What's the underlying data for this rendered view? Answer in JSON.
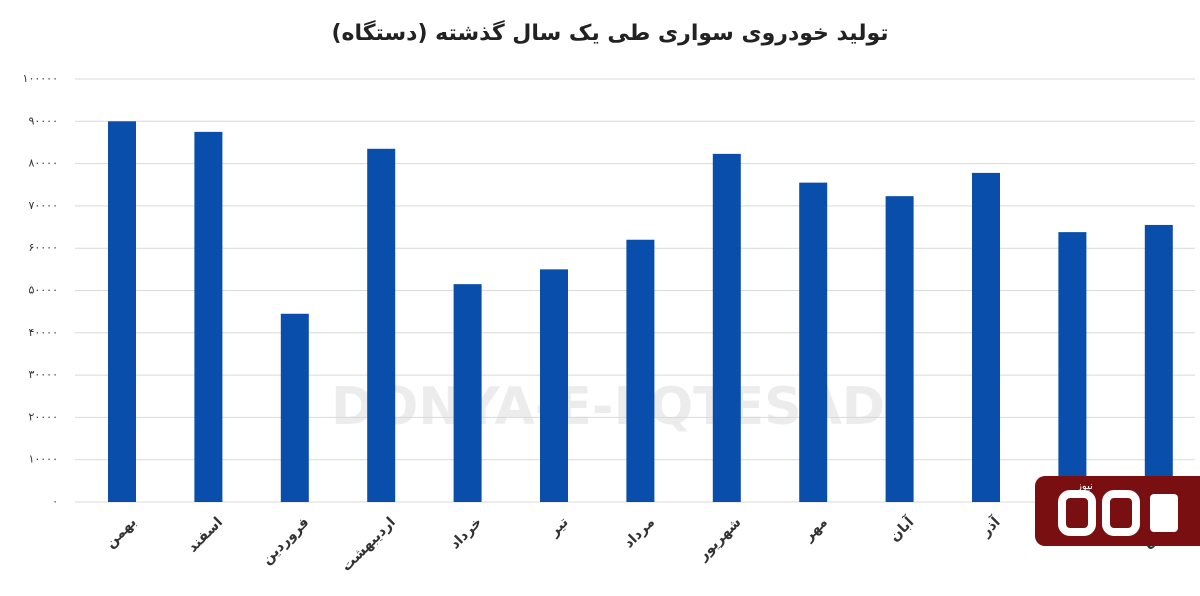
{
  "chart_data": {
    "type": "bar",
    "title": "تولید خودروی سواری طی یک سال گذشته (دستگاه)",
    "categories": [
      "بهمن",
      "اسفند",
      "فروردین",
      "اردیبهشت",
      "خرداد",
      "تیر",
      "مرداد",
      "شهریور",
      "مهر",
      "آبان",
      "آذر",
      null,
      "بهمن"
    ],
    "values": [
      90000,
      87500,
      44500,
      83500,
      51500,
      55000,
      62000,
      82300,
      75500,
      72300,
      77800,
      63800,
      65500
    ],
    "color": "#0a4eab",
    "ylim": [
      0,
      100000
    ],
    "yticks": [
      {
        "value": 0,
        "label": "۰"
      },
      {
        "value": 10000,
        "label": "۱۰۰۰۰"
      },
      {
        "value": 20000,
        "label": "۲۰۰۰۰"
      },
      {
        "value": 30000,
        "label": "۳۰۰۰۰"
      },
      {
        "value": 40000,
        "label": "۴۰۰۰۰"
      },
      {
        "value": 50000,
        "label": "۵۰۰۰۰"
      },
      {
        "value": 60000,
        "label": "۶۰۰۰۰"
      },
      {
        "value": 70000,
        "label": "۷۰۰۰۰"
      },
      {
        "value": 80000,
        "label": "۸۰۰۰۰"
      },
      {
        "value": 90000,
        "label": "۹۰۰۰۰"
      },
      {
        "value": 100000,
        "label": "۱۰۰۰۰۰"
      }
    ],
    "grid": true,
    "watermark": "DONYA-E-EQTESAD",
    "logo_text": "نیوز"
  }
}
